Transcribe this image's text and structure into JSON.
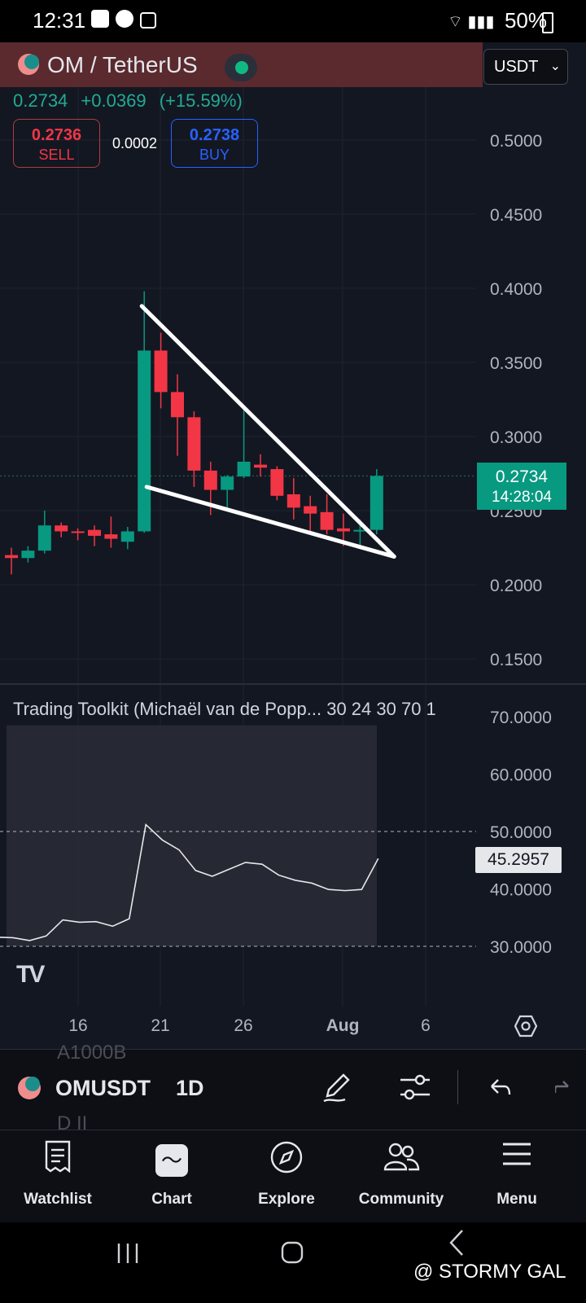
{
  "status_bar": {
    "time": "12:31",
    "battery": "50%"
  },
  "header": {
    "symbol_title": "OM / TetherUS",
    "currency": "USDT",
    "price": "0.2734",
    "change": "+0.0369",
    "change_pct": "(+15.59%)",
    "sell_price": "0.2736",
    "sell_label": "SELL",
    "spread": "0.0002",
    "buy_price": "0.2738",
    "buy_label": "BUY"
  },
  "price_axis": [
    "0.5000",
    "0.4500",
    "0.4000",
    "0.3500",
    "0.3000",
    "0.2500",
    "0.2000",
    "0.1500"
  ],
  "last_price_tag": {
    "price": "0.2734",
    "countdown": "14:28:04"
  },
  "indicator": {
    "title": "Trading Toolkit (Michaël van de Popp... 30 24 30 70 1",
    "axis": [
      "70.0000",
      "60.0000",
      "50.0000",
      "40.0000",
      "30.0000"
    ],
    "value": "45.2957"
  },
  "time_axis": [
    "16",
    "21",
    "26",
    "Aug",
    "6"
  ],
  "colors": {
    "up": "#089981",
    "down": "#f23645",
    "accent": "#2962ff",
    "background": "#131722"
  },
  "candles": [
    {
      "o": 0.22,
      "h": 0.225,
      "l": 0.207,
      "c": 0.218
    },
    {
      "o": 0.218,
      "h": 0.226,
      "l": 0.215,
      "c": 0.223
    },
    {
      "o": 0.223,
      "h": 0.25,
      "l": 0.221,
      "c": 0.24
    },
    {
      "o": 0.24,
      "h": 0.242,
      "l": 0.232,
      "c": 0.236
    },
    {
      "o": 0.236,
      "h": 0.238,
      "l": 0.23,
      "c": 0.235
    },
    {
      "o": 0.237,
      "h": 0.24,
      "l": 0.226,
      "c": 0.233
    },
    {
      "o": 0.234,
      "h": 0.246,
      "l": 0.225,
      "c": 0.231
    },
    {
      "o": 0.229,
      "h": 0.239,
      "l": 0.224,
      "c": 0.236
    },
    {
      "o": 0.236,
      "h": 0.398,
      "l": 0.235,
      "c": 0.358
    },
    {
      "o": 0.358,
      "h": 0.37,
      "l": 0.319,
      "c": 0.33
    },
    {
      "o": 0.33,
      "h": 0.342,
      "l": 0.287,
      "c": 0.313
    },
    {
      "o": 0.313,
      "h": 0.317,
      "l": 0.266,
      "c": 0.277
    },
    {
      "o": 0.277,
      "h": 0.283,
      "l": 0.247,
      "c": 0.264
    },
    {
      "o": 0.264,
      "h": 0.274,
      "l": 0.251,
      "c": 0.273
    },
    {
      "o": 0.273,
      "h": 0.318,
      "l": 0.272,
      "c": 0.283
    },
    {
      "o": 0.281,
      "h": 0.288,
      "l": 0.273,
      "c": 0.279
    },
    {
      "o": 0.278,
      "h": 0.28,
      "l": 0.257,
      "c": 0.26
    },
    {
      "o": 0.261,
      "h": 0.272,
      "l": 0.244,
      "c": 0.252
    },
    {
      "o": 0.253,
      "h": 0.26,
      "l": 0.236,
      "c": 0.248
    },
    {
      "o": 0.249,
      "h": 0.261,
      "l": 0.234,
      "c": 0.237
    },
    {
      "o": 0.238,
      "h": 0.248,
      "l": 0.226,
      "c": 0.236
    },
    {
      "o": 0.236,
      "h": 0.244,
      "l": 0.224,
      "c": 0.237
    },
    {
      "o": 0.237,
      "h": 0.278,
      "l": 0.234,
      "c": 0.2734
    }
  ],
  "indicator_line": [
    31.5,
    31.0,
    31.8,
    34.6,
    34.2,
    34.3,
    33.5,
    34.8,
    51.2,
    48.5,
    46.8,
    43.2,
    42.2,
    43.4,
    44.6,
    44.3,
    42.4,
    41.5,
    41.0,
    39.9,
    39.7,
    39.9,
    45.3
  ],
  "toolbar": {
    "symbol": "OMUSDT",
    "interval": "1D",
    "ghost_top": "A1000B",
    "ghost_bottom": "D II"
  },
  "nav": [
    {
      "label": "Watchlist"
    },
    {
      "label": "Chart"
    },
    {
      "label": "Explore"
    },
    {
      "label": "Community"
    },
    {
      "label": "Menu"
    }
  ],
  "watermark": "@ STORMY GAL"
}
